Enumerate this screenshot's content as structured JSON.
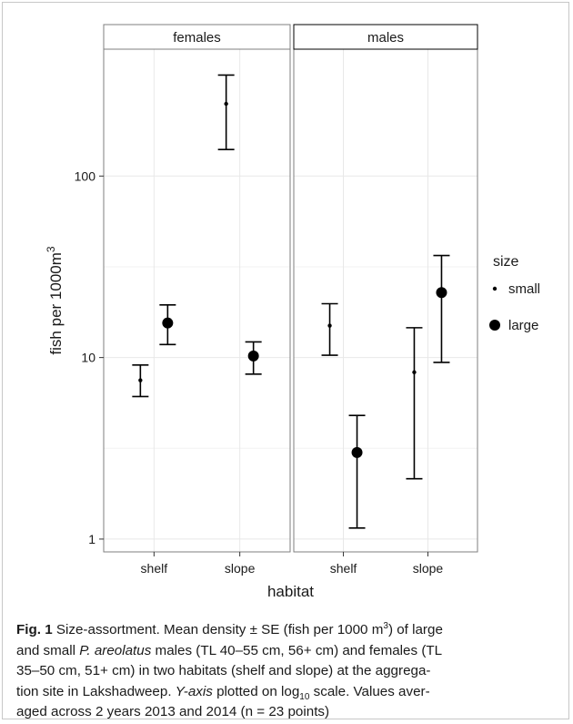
{
  "chart_data": {
    "type": "scatter",
    "facets": [
      "females",
      "males"
    ],
    "categories": [
      "shelf",
      "slope"
    ],
    "xlabel": "habitat",
    "ylabel": "fish per 1000m",
    "ylabel_sup": "3",
    "yscale": "log10",
    "ylim": [
      0.85,
      500
    ],
    "yticks": [
      1,
      10,
      100
    ],
    "ytick_labels": [
      "1",
      "10",
      "100"
    ],
    "legend": {
      "title": "size",
      "position": "right",
      "entries": [
        "small",
        "large"
      ]
    },
    "series": [
      {
        "name": "small",
        "points": [
          {
            "facet": "females",
            "category": "shelf",
            "mean": 7.5,
            "lower": 6.1,
            "upper": 9.1
          },
          {
            "facet": "females",
            "category": "slope",
            "mean": 250,
            "lower": 140,
            "upper": 360
          },
          {
            "facet": "males",
            "category": "shelf",
            "mean": 15,
            "lower": 10.3,
            "upper": 19.8
          },
          {
            "facet": "males",
            "category": "slope",
            "mean": 8.3,
            "lower": 2.15,
            "upper": 14.6
          }
        ]
      },
      {
        "name": "large",
        "points": [
          {
            "facet": "females",
            "category": "shelf",
            "mean": 15.5,
            "lower": 11.8,
            "upper": 19.5
          },
          {
            "facet": "females",
            "category": "slope",
            "mean": 10.2,
            "lower": 8.1,
            "upper": 12.2
          },
          {
            "facet": "males",
            "category": "shelf",
            "mean": 3.0,
            "lower": 1.15,
            "upper": 4.8
          },
          {
            "facet": "males",
            "category": "slope",
            "mean": 22.8,
            "lower": 9.4,
            "upper": 36.5
          }
        ]
      }
    ],
    "grid": true,
    "colors": {
      "panel_border": "#7f7f7f",
      "grid": "#e8e8e8",
      "points": "#000000",
      "strip_fill": "#ffffff"
    }
  },
  "caption": {
    "label": "Fig. 1",
    "lines": [
      [
        "  Size-assortment. Mean density ± SE (fish per 1000 m",
        {
          "sup": "3"
        },
        ") of large"
      ],
      [
        "and small ",
        {
          "i": "P. areolatus"
        },
        " males (TL 40–55 cm, 56+ cm) and females (TL"
      ],
      [
        "35–50 cm, 51+ cm) in two habitats (shelf and slope) at the aggrega-"
      ],
      [
        "tion site in Lakshadweep. ",
        {
          "i": "Y-axis"
        },
        " plotted on log",
        {
          "sub": "10"
        },
        " scale. Values aver-"
      ],
      [
        "aged across 2 years 2013 and 2014 (n = 23 points)"
      ]
    ]
  }
}
